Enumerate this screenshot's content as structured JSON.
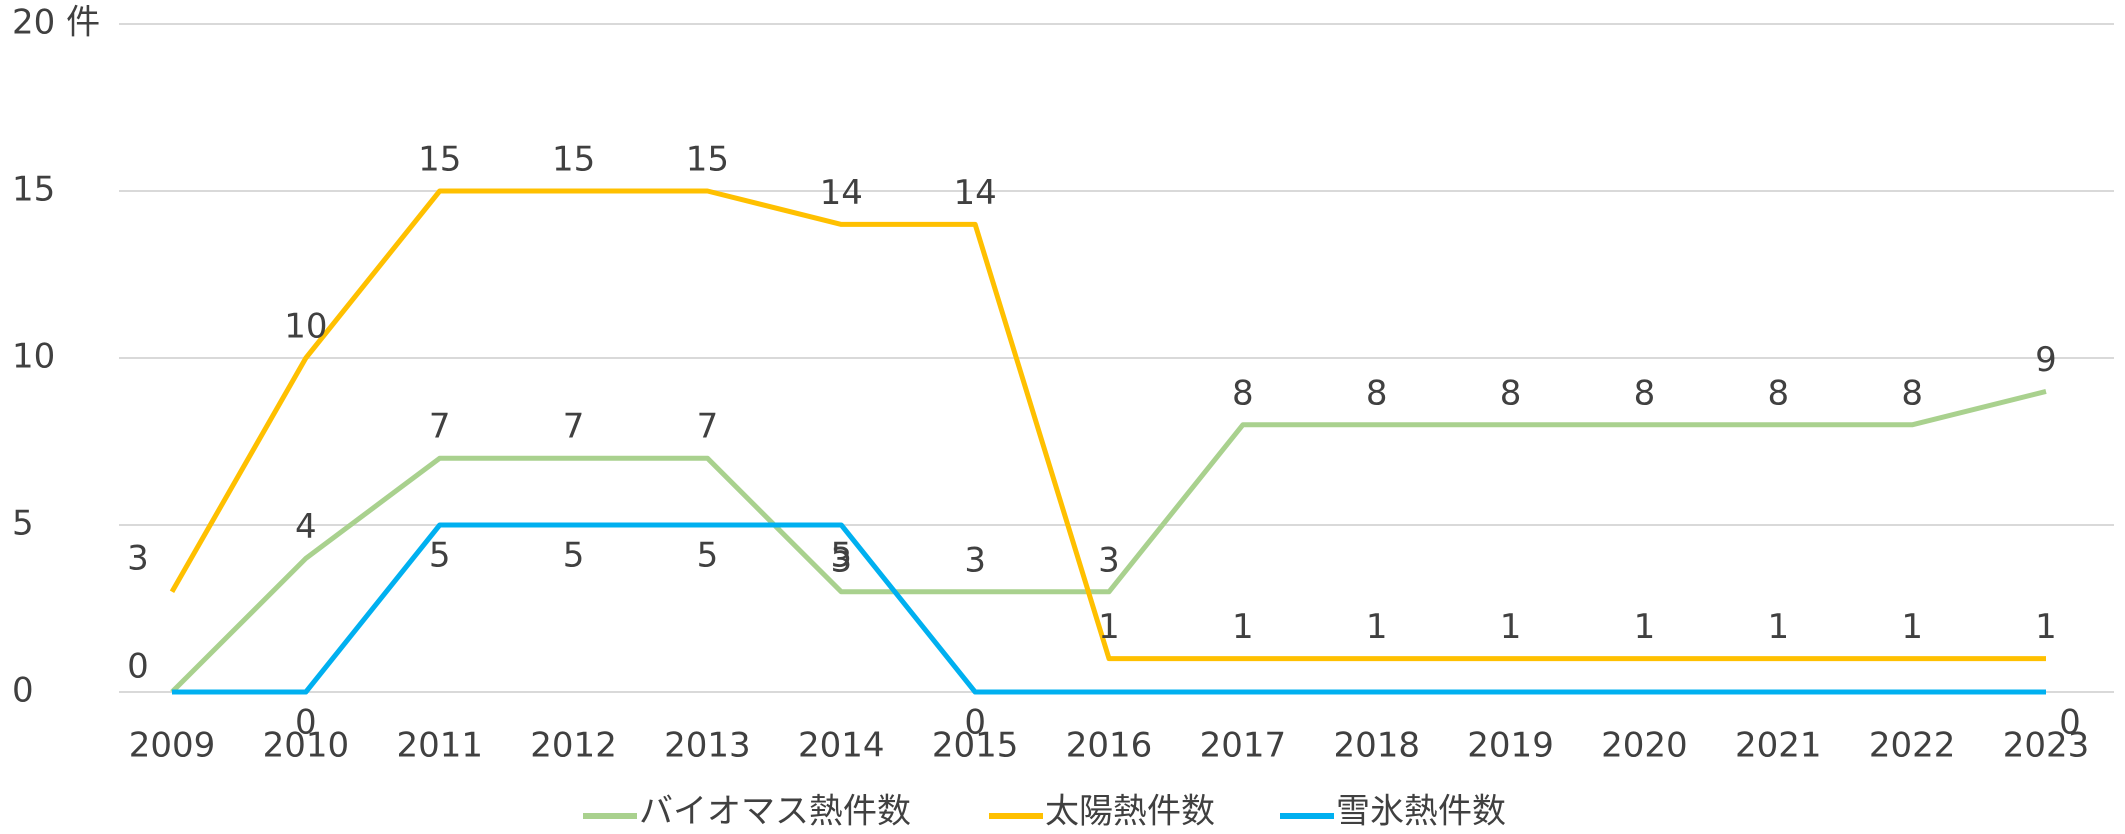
{
  "chart_data": {
    "type": "line",
    "categories": [
      "2009",
      "2010",
      "2011",
      "2012",
      "2013",
      "2014",
      "2015",
      "2016",
      "2017",
      "2018",
      "2019",
      "2020",
      "2021",
      "2022",
      "2023"
    ],
    "series": [
      {
        "name": "バイオマス熱件数",
        "color": "#a9d18e",
        "values": [
          0,
          4,
          7,
          7,
          7,
          3,
          3,
          3,
          8,
          8,
          8,
          8,
          8,
          8,
          9
        ],
        "value_labels": [
          null,
          "4",
          "7",
          "7",
          "7",
          "3",
          "3",
          "3",
          "8",
          "8",
          "8",
          "8",
          "8",
          "8",
          "9"
        ]
      },
      {
        "name": "太陽熱件数",
        "color": "#ffc000",
        "values": [
          3,
          10,
          15,
          15,
          15,
          14,
          14,
          1,
          1,
          1,
          1,
          1,
          1,
          1,
          1
        ],
        "value_labels": [
          "3",
          "10",
          "15",
          "15",
          "15",
          "14",
          "14",
          "1",
          "1",
          "1",
          "1",
          "1",
          "1",
          "1",
          "1"
        ]
      },
      {
        "name": "雪氷熱件数",
        "color": "#00b0f0",
        "values": [
          0,
          0,
          5,
          5,
          5,
          5,
          0,
          0,
          0,
          0,
          0,
          0,
          0,
          0,
          0
        ],
        "value_labels": [
          "0",
          "0",
          "5",
          "5",
          "5",
          "5",
          "0",
          null,
          null,
          null,
          null,
          null,
          null,
          null,
          "0"
        ]
      }
    ],
    "ylim": [
      0,
      20
    ],
    "yticks": [
      0,
      5,
      10,
      15,
      {
        "value": 20,
        "label": "20 件"
      }
    ],
    "grid": true,
    "legend": "bottom"
  }
}
